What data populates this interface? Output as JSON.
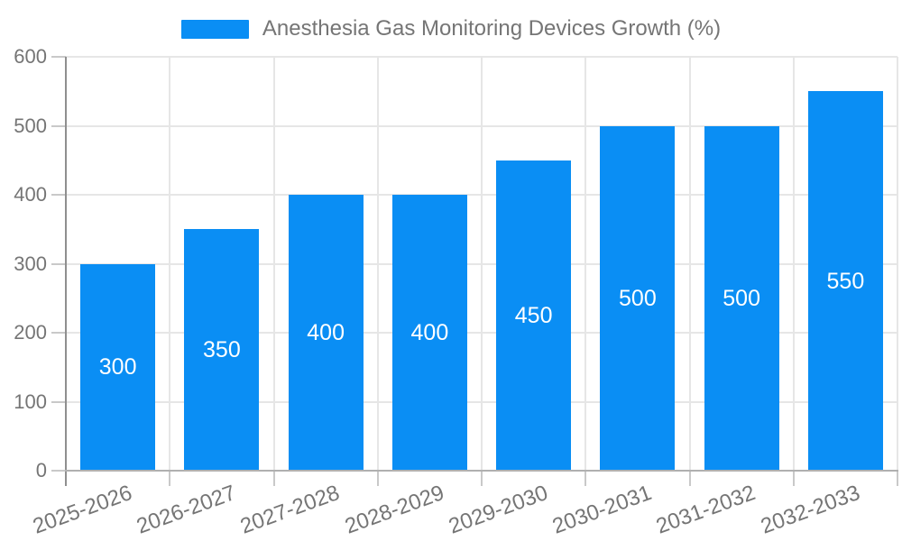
{
  "legend": {
    "items": [
      {
        "label": "Anesthesia Gas Monitoring Devices Growth (%)",
        "color": "#0a8ef4"
      }
    ],
    "position": "top-center"
  },
  "chart_data": {
    "type": "bar",
    "title": "Anesthesia Gas Monitoring Devices Growth (%)",
    "categories": [
      "2025-2026",
      "2026-2027",
      "2027-2028",
      "2028-2029",
      "2029-2030",
      "2030-2031",
      "2031-2032",
      "2032-2033"
    ],
    "values": [
      300,
      350,
      400,
      400,
      450,
      500,
      500,
      550
    ],
    "xlabel": "",
    "ylabel": "",
    "ylim": [
      0,
      600
    ],
    "yticks": [
      0,
      100,
      200,
      300,
      400,
      500,
      600
    ],
    "grid": true,
    "value_label_position": "inside-center",
    "x_label_rotation_deg": -20
  },
  "colors": {
    "bar": "#0a8ef4",
    "value_label": "#ffffff",
    "axis_text": "#757575",
    "legend_text": "#757575",
    "gridline": "#e6e6e6",
    "tick": "#c9c9c9",
    "axis_y_line": "#8f8f8f",
    "axis_x_line": "#b0b0b0",
    "background": "#ffffff"
  }
}
